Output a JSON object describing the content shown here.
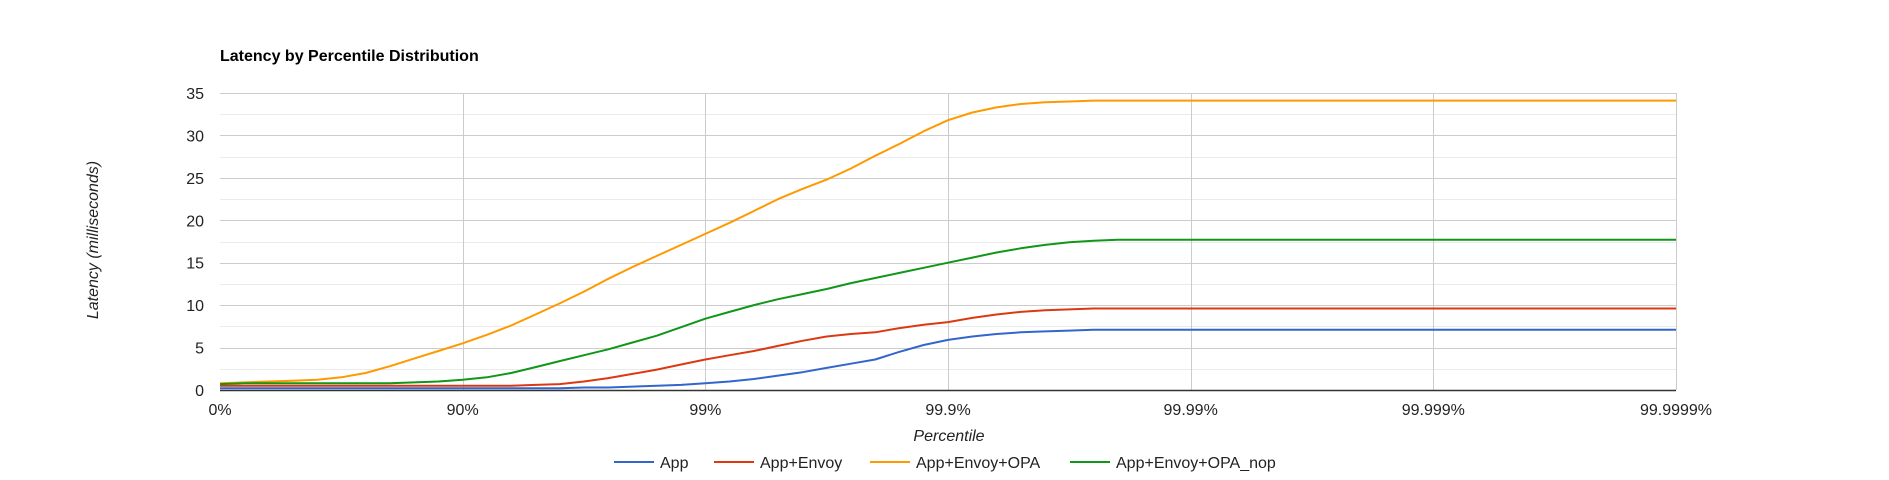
{
  "chart_data": {
    "type": "line",
    "title": "Latency by Percentile Distribution",
    "xlabel": "Percentile",
    "ylabel": "Latency (milliseconds)",
    "x_scale": "log-percentile",
    "x_ticks": [
      "0%",
      "90%",
      "99%",
      "99.9%",
      "99.99%",
      "99.999%",
      "99.9999%"
    ],
    "y_ticks": [
      "0",
      "5",
      "10",
      "15",
      "20",
      "25",
      "30",
      "35"
    ],
    "ylim": [
      0,
      35
    ],
    "grid": true,
    "legend_position": "bottom",
    "x": [
      0,
      0.1,
      0.2,
      0.3,
      0.4,
      0.5,
      0.6,
      0.7,
      0.8,
      0.9,
      1.0,
      1.1,
      1.2,
      1.3,
      1.4,
      1.5,
      1.6,
      1.7,
      1.8,
      1.9,
      2.0,
      2.1,
      2.2,
      2.3,
      2.4,
      2.5,
      2.6,
      2.7,
      2.8,
      2.9,
      3.0,
      3.1,
      3.2,
      3.3,
      3.4,
      3.5,
      3.6,
      3.7,
      3.8,
      3.9,
      4.0,
      4.5,
      5.0,
      5.5,
      6.0
    ],
    "series": [
      {
        "name": "App",
        "color": "#3366cc",
        "values": [
          0.2,
          0.2,
          0.2,
          0.2,
          0.2,
          0.2,
          0.2,
          0.2,
          0.2,
          0.2,
          0.2,
          0.2,
          0.2,
          0.2,
          0.2,
          0.3,
          0.3,
          0.4,
          0.5,
          0.6,
          0.8,
          1.0,
          1.3,
          1.7,
          2.1,
          2.6,
          3.1,
          3.6,
          4.5,
          5.3,
          5.9,
          6.3,
          6.6,
          6.8,
          6.9,
          7.0,
          7.1,
          7.1,
          7.1,
          7.1,
          7.1,
          7.1,
          7.1,
          7.1,
          7.1
        ]
      },
      {
        "name": "App+Envoy",
        "color": "#dc3912",
        "values": [
          0.5,
          0.5,
          0.5,
          0.5,
          0.5,
          0.5,
          0.5,
          0.5,
          0.5,
          0.5,
          0.5,
          0.5,
          0.5,
          0.6,
          0.7,
          1.0,
          1.4,
          1.9,
          2.4,
          3.0,
          3.6,
          4.1,
          4.6,
          5.2,
          5.8,
          6.3,
          6.6,
          6.8,
          7.3,
          7.7,
          8.0,
          8.5,
          8.9,
          9.2,
          9.4,
          9.5,
          9.6,
          9.6,
          9.6,
          9.6,
          9.6,
          9.6,
          9.6,
          9.6,
          9.6
        ]
      },
      {
        "name": "App+Envoy+OPA",
        "color": "#ff9900",
        "values": [
          0.8,
          0.9,
          1.0,
          1.1,
          1.2,
          1.5,
          2.0,
          2.8,
          3.7,
          4.6,
          5.5,
          6.5,
          7.6,
          8.9,
          10.2,
          11.6,
          13.1,
          14.5,
          15.8,
          17.1,
          18.4,
          19.7,
          21.1,
          22.5,
          23.7,
          24.8,
          26.1,
          27.6,
          29.0,
          30.5,
          31.8,
          32.7,
          33.3,
          33.7,
          33.9,
          34.0,
          34.1,
          34.1,
          34.1,
          34.1,
          34.1,
          34.1,
          34.1,
          34.1,
          34.1
        ]
      },
      {
        "name": "App+Envoy+OPA_nop",
        "color": "#109618",
        "values": [
          0.7,
          0.8,
          0.8,
          0.8,
          0.8,
          0.8,
          0.8,
          0.8,
          0.9,
          1.0,
          1.2,
          1.5,
          2.0,
          2.7,
          3.4,
          4.1,
          4.8,
          5.6,
          6.4,
          7.4,
          8.4,
          9.2,
          10.0,
          10.7,
          11.3,
          11.9,
          12.6,
          13.2,
          13.8,
          14.4,
          15.0,
          15.6,
          16.2,
          16.7,
          17.1,
          17.4,
          17.6,
          17.7,
          17.7,
          17.7,
          17.7,
          17.7,
          17.7,
          17.7,
          17.7
        ]
      }
    ]
  }
}
